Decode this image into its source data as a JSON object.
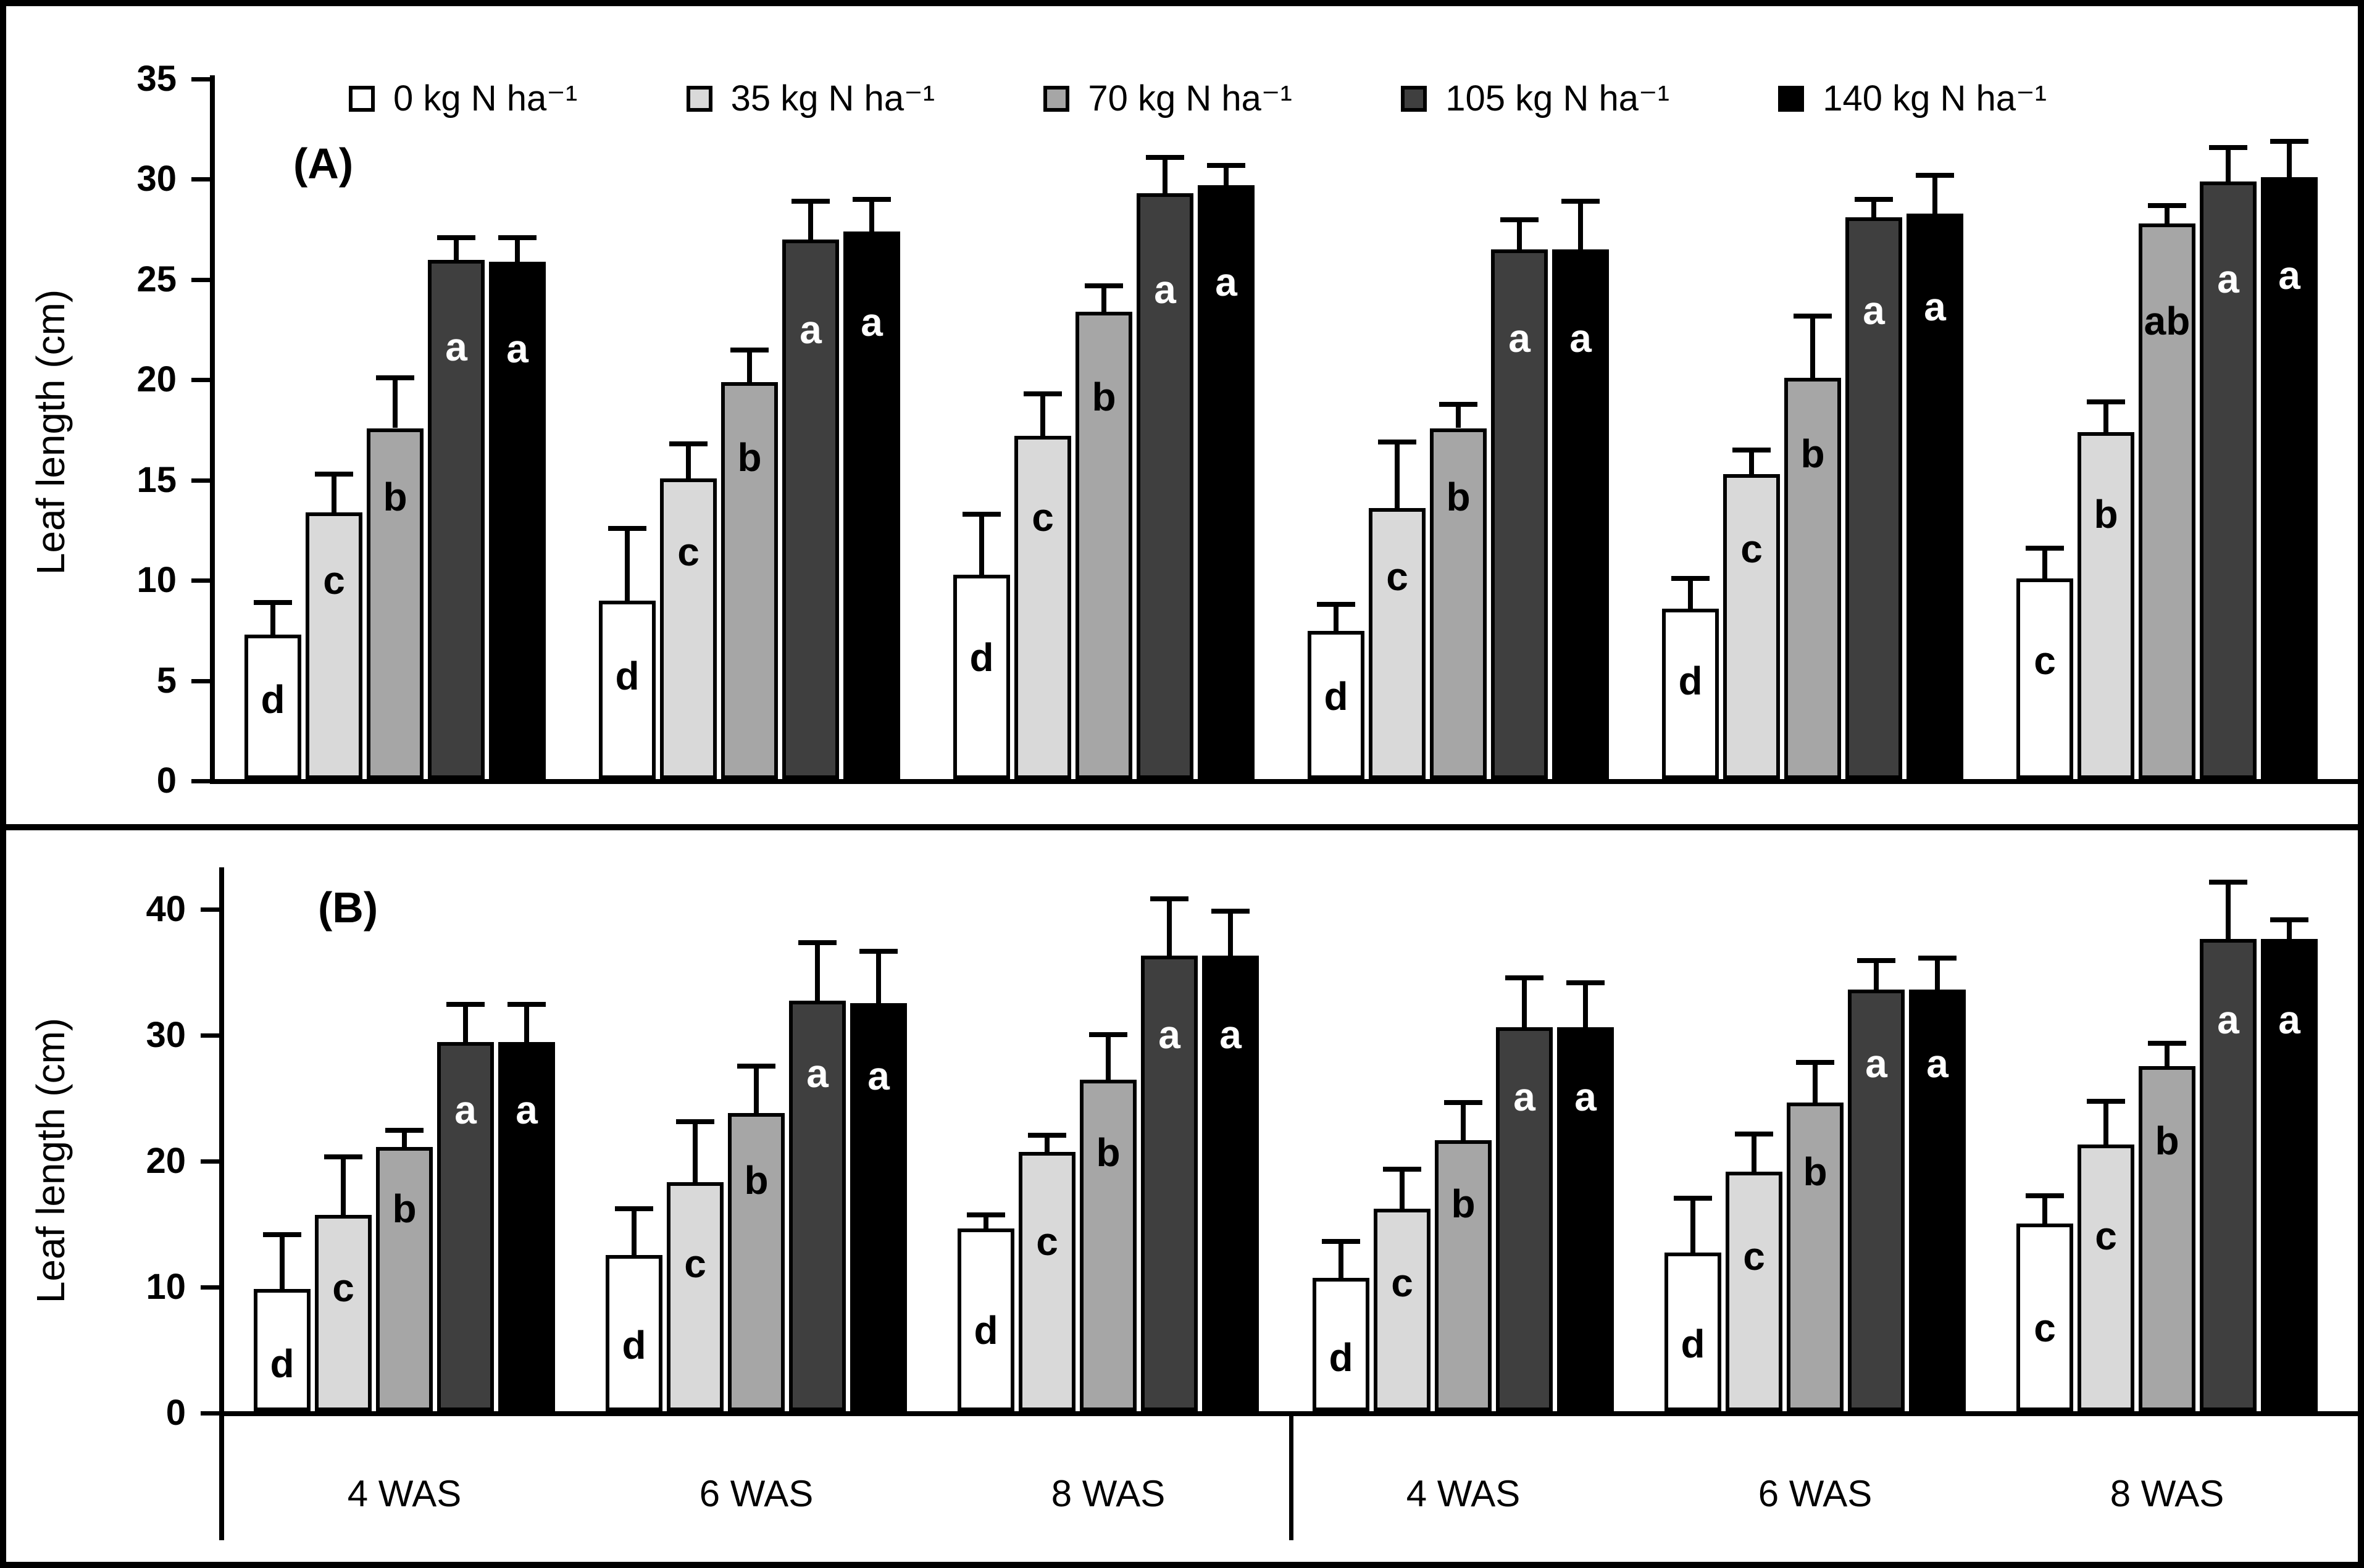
{
  "legend": {
    "items": [
      {
        "label": "0 kg N ha⁻¹",
        "color": "#ffffff"
      },
      {
        "label": "35 kg N ha⁻¹",
        "color": "#d9d9d9"
      },
      {
        "label": "70 kg N ha⁻¹",
        "color": "#a6a6a6"
      },
      {
        "label": "105 kg N ha⁻¹",
        "color": "#3f3f3f"
      },
      {
        "label": "140 kg N ha⁻¹",
        "color": "#000000"
      }
    ]
  },
  "chart_data": [
    {
      "type": "bar",
      "panel_label": "(A)",
      "ylabel": "Leaf length (cm)",
      "ylim": [
        0,
        35
      ],
      "yticks": [
        0,
        5,
        10,
        15,
        20,
        25,
        30,
        35
      ],
      "grid": false,
      "legend_position": "top",
      "categories": [
        "4 WAS",
        "6 WAS",
        "8 WAS",
        "4 WAS",
        "6 WAS",
        "8 WAS"
      ],
      "series": [
        {
          "name": "0 kg N ha⁻¹",
          "color": "#ffffff",
          "letter_color": "#000000",
          "values": [
            7.2,
            8.9,
            10.2,
            7.4,
            8.5,
            10.0
          ],
          "errors": [
            1.6,
            3.6,
            3.0,
            1.3,
            1.5,
            1.5
          ],
          "letters": [
            "d",
            "d",
            "d",
            "d",
            "d",
            "c"
          ]
        },
        {
          "name": "35 kg N ha⁻¹",
          "color": "#d9d9d9",
          "letter_color": "#000000",
          "values": [
            13.3,
            15.0,
            17.1,
            13.5,
            15.2,
            17.3
          ],
          "errors": [
            1.9,
            1.7,
            2.1,
            3.3,
            1.2,
            1.5
          ],
          "letters": [
            "c",
            "c",
            "c",
            "c",
            "c",
            "b"
          ]
        },
        {
          "name": "70 kg N ha⁻¹",
          "color": "#a6a6a6",
          "letter_color": "#000000",
          "values": [
            17.5,
            19.8,
            23.3,
            17.5,
            20.0,
            27.7
          ],
          "errors": [
            2.5,
            1.6,
            1.3,
            1.2,
            3.1,
            0.9
          ],
          "letters": [
            "b",
            "b",
            "b",
            "b",
            "b",
            "ab"
          ]
        },
        {
          "name": "105 kg N ha⁻¹",
          "color": "#3f3f3f",
          "letter_color": "#ffffff",
          "values": [
            25.9,
            26.9,
            29.2,
            26.4,
            28.0,
            29.8
          ],
          "errors": [
            1.1,
            1.9,
            1.8,
            1.5,
            0.9,
            1.7
          ],
          "letters": [
            "a",
            "a",
            "a",
            "a",
            "a",
            "a"
          ]
        },
        {
          "name": "140 kg N ha⁻¹",
          "color": "#000000",
          "letter_color": "#ffffff",
          "values": [
            25.8,
            27.3,
            29.6,
            26.4,
            28.2,
            30.0
          ],
          "errors": [
            1.2,
            1.6,
            1.0,
            2.4,
            1.9,
            1.8
          ],
          "letters": [
            "a",
            "a",
            "a",
            "a",
            "a",
            "a"
          ]
        }
      ]
    },
    {
      "type": "bar",
      "panel_label": "(B)",
      "ylabel": "Leaf length (cm)",
      "ylim": [
        0,
        40
      ],
      "yticks": [
        0,
        10,
        20,
        30,
        40
      ],
      "grid": false,
      "legend_position": "none",
      "categories": [
        "4 WAS",
        "6 WAS",
        "8 WAS",
        "4 WAS",
        "6 WAS",
        "8 WAS"
      ],
      "series": [
        {
          "name": "0 kg N ha⁻¹",
          "color": "#ffffff",
          "letter_color": "#000000",
          "values": [
            9.7,
            12.4,
            14.5,
            10.6,
            12.6,
            14.9
          ],
          "errors": [
            4.3,
            3.7,
            1.1,
            2.9,
            4.3,
            2.2
          ],
          "letters": [
            "d",
            "d",
            "d",
            "d",
            "d",
            "c"
          ]
        },
        {
          "name": "35 kg N ha⁻¹",
          "color": "#d9d9d9",
          "letter_color": "#000000",
          "values": [
            15.6,
            18.2,
            20.6,
            16.1,
            19.0,
            21.2
          ],
          "errors": [
            4.6,
            4.8,
            1.3,
            3.1,
            3.0,
            3.4
          ],
          "letters": [
            "c",
            "c",
            "c",
            "c",
            "c",
            "c"
          ]
        },
        {
          "name": "70 kg N ha⁻¹",
          "color": "#a6a6a6",
          "letter_color": "#000000",
          "values": [
            21.0,
            23.7,
            26.3,
            21.5,
            24.5,
            27.4
          ],
          "errors": [
            1.3,
            3.7,
            3.6,
            3.0,
            3.2,
            1.8
          ],
          "letters": [
            "b",
            "b",
            "b",
            "b",
            "b",
            "b"
          ]
        },
        {
          "name": "105 kg N ha⁻¹",
          "color": "#3f3f3f",
          "letter_color": "#ffffff",
          "values": [
            29.3,
            32.6,
            36.2,
            30.5,
            33.5,
            37.5
          ],
          "errors": [
            3.0,
            4.6,
            4.5,
            3.9,
            2.3,
            4.5
          ],
          "letters": [
            "a",
            "a",
            "a",
            "a",
            "a",
            "a"
          ]
        },
        {
          "name": "140 kg N ha⁻¹",
          "color": "#000000",
          "letter_color": "#ffffff",
          "values": [
            29.3,
            32.4,
            36.2,
            30.5,
            33.5,
            37.5
          ],
          "errors": [
            3.0,
            4.1,
            3.5,
            3.5,
            2.5,
            1.5
          ],
          "letters": [
            "a",
            "a",
            "a",
            "a",
            "a",
            "a"
          ]
        }
      ]
    }
  ]
}
